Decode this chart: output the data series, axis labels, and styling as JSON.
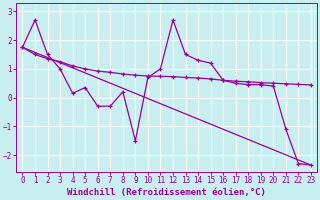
{
  "xlabel": "Windchill (Refroidissement éolien,°C)",
  "background_color": "#c8eef0",
  "line_color": "#990099",
  "grid_color": "#ffffff",
  "xlim": [
    -0.5,
    23.5
  ],
  "ylim": [
    -2.6,
    3.3
  ],
  "yticks": [
    -2,
    -1,
    0,
    1,
    2,
    3
  ],
  "xticks": [
    0,
    1,
    2,
    3,
    4,
    5,
    6,
    7,
    8,
    9,
    10,
    11,
    12,
    13,
    14,
    15,
    16,
    17,
    18,
    19,
    20,
    21,
    22,
    23
  ],
  "line1_x": [
    0,
    1,
    2,
    3,
    4,
    5,
    6,
    7,
    8,
    9,
    10,
    11,
    12,
    13,
    14,
    15,
    16,
    17,
    18,
    19,
    20,
    21,
    22,
    23
  ],
  "line1_y": [
    1.75,
    2.7,
    1.5,
    1.0,
    0.15,
    0.35,
    -0.3,
    -0.3,
    0.2,
    -1.5,
    0.7,
    1.0,
    2.7,
    1.5,
    1.3,
    1.2,
    0.6,
    0.5,
    0.45,
    0.45,
    0.4,
    -1.1,
    -2.3,
    -2.35
  ],
  "line2_x": [
    0,
    1,
    2,
    3,
    4,
    5,
    6,
    7,
    8,
    9,
    10,
    11,
    12,
    13,
    14,
    15,
    16,
    17,
    18,
    19,
    20,
    21,
    22,
    23
  ],
  "line2_y": [
    1.75,
    1.5,
    1.35,
    1.25,
    1.1,
    1.0,
    0.92,
    0.88,
    0.82,
    0.78,
    0.75,
    0.74,
    0.73,
    0.7,
    0.68,
    0.65,
    0.6,
    0.57,
    0.55,
    0.52,
    0.5,
    0.48,
    0.46,
    0.44
  ],
  "line3_x": [
    0,
    23
  ],
  "line3_y": [
    1.75,
    -2.35
  ],
  "xlabel_fontsize": 6.5,
  "tick_fontsize": 5.5
}
